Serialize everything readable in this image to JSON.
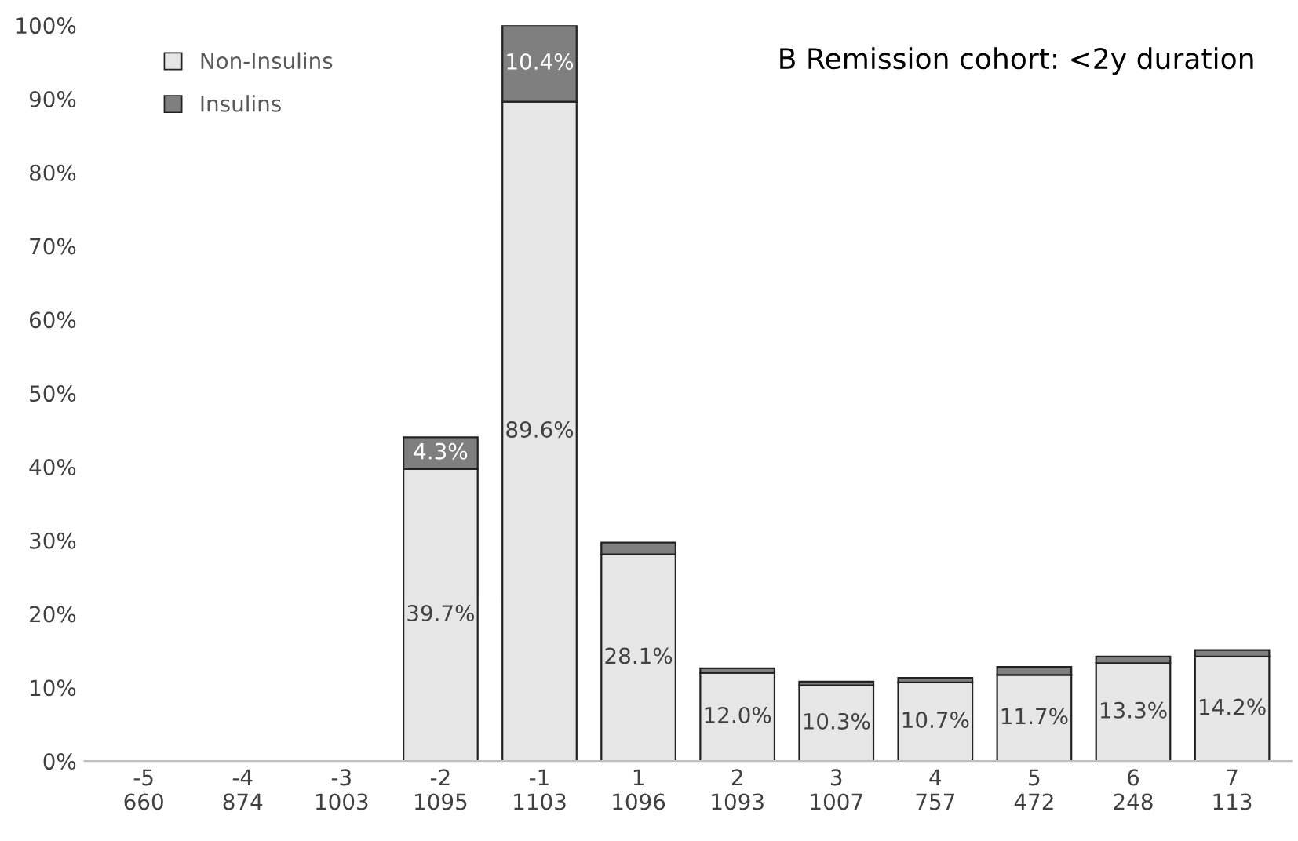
{
  "chart_data": {
    "type": "bar",
    "title": "B Remission cohort: <2y duration",
    "categories": [
      "-5\n660",
      "-4\n874",
      "-3\n1003",
      "-2\n1095",
      "-1\n1103",
      "1\n1096",
      "2\n1093",
      "3\n1007",
      "4\n757",
      "5\n472",
      "6\n248",
      "7\n113"
    ],
    "stacked": true,
    "series": [
      {
        "name": "Non-Insulins",
        "color": "#e7e6e6",
        "values": [
          null,
          null,
          null,
          39.7,
          89.6,
          28.1,
          12.0,
          10.3,
          10.7,
          11.7,
          13.3,
          14.2
        ],
        "value_labels": [
          null,
          null,
          null,
          "39.7%",
          "89.6%",
          "28.1%",
          "12.0%",
          "10.3%",
          "10.7%",
          "11.7%",
          "13.3%",
          "14.2%"
        ]
      },
      {
        "name": "Insulins",
        "color": "#7f7f7f",
        "values": [
          null,
          null,
          null,
          4.3,
          10.4,
          1.6,
          0.6,
          0.5,
          0.6,
          1.1,
          0.9,
          0.9
        ],
        "value_labels": [
          null,
          null,
          null,
          "4.3%",
          "10.4%",
          null,
          null,
          null,
          null,
          null,
          null,
          null
        ]
      }
    ],
    "ylim": [
      0,
      100
    ],
    "yticks": [
      {
        "value": 0,
        "label": "0%"
      },
      {
        "value": 10,
        "label": "10%"
      },
      {
        "value": 20,
        "label": "20%"
      },
      {
        "value": 30,
        "label": "30%"
      },
      {
        "value": 40,
        "label": "40%"
      },
      {
        "value": 50,
        "label": "50%"
      },
      {
        "value": 60,
        "label": "60%"
      },
      {
        "value": 70,
        "label": "70%"
      },
      {
        "value": 80,
        "label": "80%"
      },
      {
        "value": 90,
        "label": "90%"
      },
      {
        "value": 100,
        "label": "100%"
      }
    ],
    "legend": "top left",
    "grid": false
  }
}
